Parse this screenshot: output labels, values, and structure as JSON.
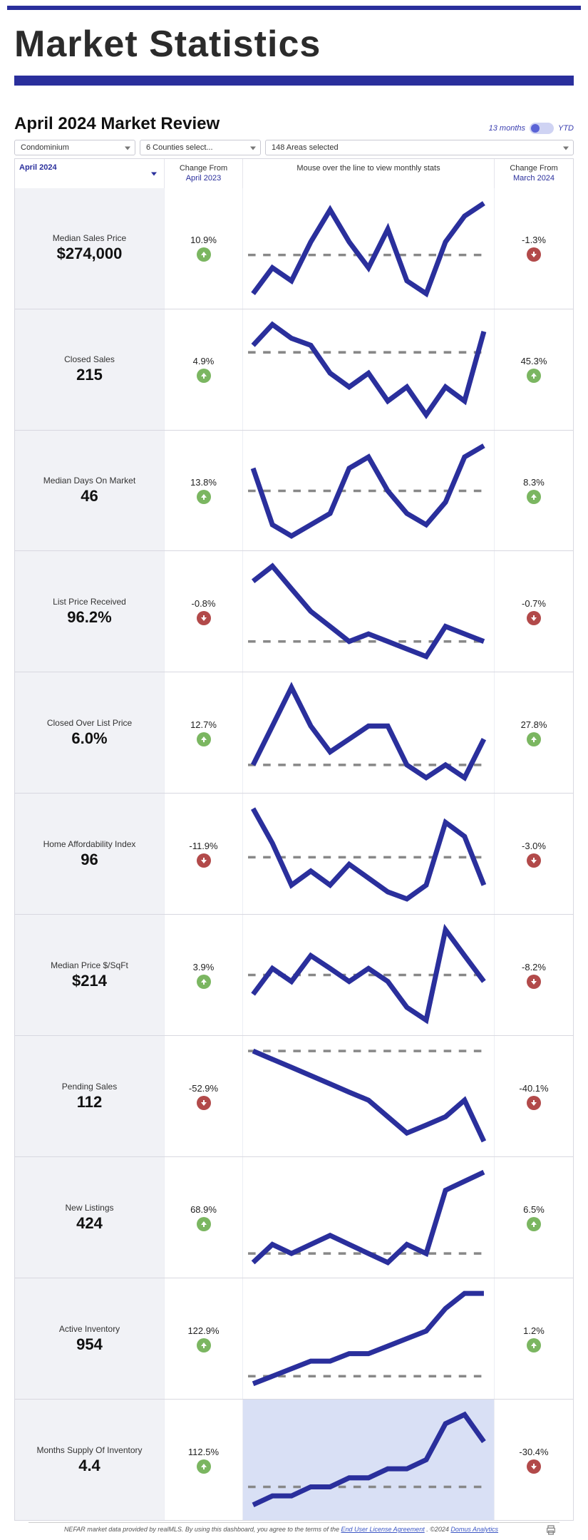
{
  "page": {
    "title": "Market Statistics",
    "accent_color": "#2a2f9c"
  },
  "review": {
    "title": "April 2024 Market Review",
    "toggle_left": "13 months",
    "toggle_right": "YTD",
    "toggle_state": "13 months"
  },
  "filters": {
    "property_type": "Condominium",
    "counties": "6 Counties select...",
    "areas": "148 Areas selected"
  },
  "table_header": {
    "month_select": "April 2024",
    "change_from_label": "Change From",
    "change_from_year": "April 2023",
    "sparkline_hint": "Mouse over the line to view monthly stats",
    "change_from_month": "March 2024"
  },
  "sparkline_style": {
    "line_color": "#2a2f9c",
    "line_width": 2,
    "dash_color": "#888",
    "shaded_bg": "#d9e0f5"
  },
  "metrics": [
    {
      "label": "Median Sales Price",
      "value": "$274,000",
      "yoy_pct": "10.9%",
      "yoy_dir": "up",
      "mom_pct": "-1.3%",
      "mom_dir": "down",
      "spark": [
        22,
        26,
        24,
        30,
        35,
        30,
        26,
        32,
        24,
        22,
        30,
        34,
        36
      ],
      "baseline": 28,
      "shaded": false
    },
    {
      "label": "Closed Sales",
      "value": "215",
      "yoy_pct": "4.9%",
      "yoy_dir": "up",
      "mom_pct": "45.3%",
      "mom_dir": "up",
      "spark": [
        30,
        33,
        31,
        30,
        26,
        24,
        26,
        22,
        24,
        20,
        24,
        22,
        32
      ],
      "baseline": 29,
      "shaded": false
    },
    {
      "label": "Median Days On Market",
      "value": "46",
      "yoy_pct": "13.8%",
      "yoy_dir": "up",
      "mom_pct": "8.3%",
      "mom_dir": "up",
      "spark": [
        34,
        24,
        22,
        24,
        26,
        34,
        36,
        30,
        26,
        24,
        28,
        36,
        38
      ],
      "baseline": 30,
      "shaded": false
    },
    {
      "label": "List Price Received",
      "value": "96.2%",
      "yoy_pct": "-0.8%",
      "yoy_dir": "down",
      "mom_pct": "-0.7%",
      "mom_dir": "down",
      "spark": [
        34,
        36,
        33,
        30,
        28,
        26,
        27,
        26,
        25,
        24,
        28,
        27,
        26
      ],
      "baseline": 26,
      "shaded": false
    },
    {
      "label": "Closed Over List Price",
      "value": "6.0%",
      "yoy_pct": "12.7%",
      "yoy_dir": "up",
      "mom_pct": "27.8%",
      "mom_dir": "up",
      "spark": [
        24,
        30,
        36,
        30,
        26,
        28,
        30,
        30,
        24,
        22,
        24,
        22,
        28
      ],
      "baseline": 24,
      "shaded": false
    },
    {
      "label": "Home Affordability Index",
      "value": "96",
      "yoy_pct": "-11.9%",
      "yoy_dir": "down",
      "mom_pct": "-3.0%",
      "mom_dir": "down",
      "spark": [
        44,
        34,
        22,
        26,
        22,
        28,
        24,
        20,
        18,
        22,
        40,
        36,
        22
      ],
      "baseline": 30,
      "shaded": false
    },
    {
      "label": "Median Price $/SqFt",
      "value": "$214",
      "yoy_pct": "3.9%",
      "yoy_dir": "up",
      "mom_pct": "-8.2%",
      "mom_dir": "down",
      "spark": [
        24,
        28,
        26,
        30,
        28,
        26,
        28,
        26,
        22,
        20,
        34,
        30,
        26
      ],
      "baseline": 27,
      "shaded": false
    },
    {
      "label": "Pending Sales",
      "value": "112",
      "yoy_pct": "-52.9%",
      "yoy_dir": "down",
      "mom_pct": "-40.1%",
      "mom_dir": "down",
      "spark": [
        38,
        36,
        34,
        32,
        30,
        28,
        26,
        22,
        18,
        20,
        22,
        26,
        16
      ],
      "baseline": 38,
      "shaded": false
    },
    {
      "label": "New Listings",
      "value": "424",
      "yoy_pct": "68.9%",
      "yoy_dir": "up",
      "mom_pct": "6.5%",
      "mom_dir": "up",
      "spark": [
        20,
        24,
        22,
        24,
        26,
        24,
        22,
        20,
        24,
        22,
        36,
        38,
        40
      ],
      "baseline": 22,
      "shaded": false
    },
    {
      "label": "Active Inventory",
      "value": "954",
      "yoy_pct": "122.9%",
      "yoy_dir": "up",
      "mom_pct": "1.2%",
      "mom_dir": "up",
      "spark": [
        16,
        18,
        20,
        22,
        22,
        24,
        24,
        26,
        28,
        30,
        36,
        40,
        40
      ],
      "baseline": 18,
      "shaded": false
    },
    {
      "label": "Months Supply Of Inventory",
      "value": "4.4",
      "yoy_pct": "112.5%",
      "yoy_dir": "up",
      "mom_pct": "-30.4%",
      "mom_dir": "down",
      "spark": [
        16,
        18,
        18,
        20,
        20,
        22,
        22,
        24,
        24,
        26,
        34,
        36,
        30
      ],
      "baseline": 20,
      "shaded": true
    }
  ],
  "footer": {
    "prefix": "NEFAR market data provided by realMLS.  By using this dashboard, you agree to the terms of the ",
    "eula_text": "End User License Agreement",
    "mid": ".   ©2024 ",
    "company": "Domus Analytics"
  }
}
